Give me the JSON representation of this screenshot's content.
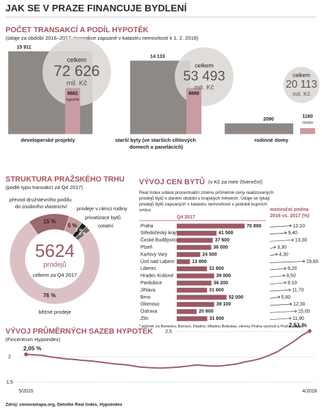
{
  "title": "JAK SE V PRAZE FINANCUJE BYDLENÍ",
  "source": "Zdroj: cenovamapa.org, Deloitte Real Index, Hypoindex",
  "chart_data": [
    {
      "type": "bar",
      "title": "POČET TRANSAKCÍ A PODÍL HYPOTÉK",
      "subtitle": "(údaje za období 2016–2017, transakce zapsané v katastru nemovitostí k 1. 2. 2018)",
      "categories": [
        "developerské projekty",
        "starší byty (ve starších cihlových domech a panelácích)",
        "rodinné domy"
      ],
      "series": [
        {
          "values": [
            15911,
            14133,
            2090
          ],
          "value_labels": [
            "15 911",
            "14 133",
            "2090"
          ],
          "color": "#8e8985"
        },
        {
          "values": [
            8882,
            8888,
            1180
          ],
          "value_labels": [
            "8882",
            "8888",
            "1180"
          ],
          "notes": [
            "hypoték",
            null,
            "zástav"
          ],
          "color": "#c99ca2"
        }
      ],
      "totals": {
        "label": "celkem",
        "unit": "mil. Kč",
        "values": [
          72626,
          53493,
          20113
        ],
        "value_labels": [
          "72 626",
          "53 493",
          "20 113"
        ],
        "color": "#dcd8d5"
      }
    },
    {
      "type": "donut",
      "title": "STRUKTURA PRAŽSKÉHO TRHU",
      "subtitle": "(podle typu transakcí za Q4 2017)",
      "categories": [
        "převod družstevního podílu do osobního vlastnictví",
        "prodeje v rámci rodiny",
        "privatizace bytů",
        "ostatní",
        "běžné prodeje"
      ],
      "values": [
        15,
        5,
        2,
        2,
        76
      ],
      "value_labels": [
        "15 %",
        "5 %",
        "2 %",
        "2 %",
        "76 %"
      ],
      "colors": [
        "#9d6870",
        "#c59aa0",
        "#1e1a1a",
        "#6e6a6a",
        "#dcc1c4"
      ],
      "center": {
        "value": 5624,
        "unit": "prodejů",
        "note": "celkem za Q4 2017"
      }
    },
    {
      "type": "bar",
      "orientation": "horizontal",
      "title": "VÝVOJ CEN BYTŮ",
      "subtitle": "(v Kč za metr čtvereční)",
      "note": "Real Index udává procentuální změnu průměrné ceny realizovaných prodejů bytů v daném období v krajských městech. Údaje se týkají prodejů bytů zapsaných v katastru nemovitostí v podobě kupních smluv.",
      "column_labels": [
        "Q4 2017",
        "meziroční změna 2016 vs. 2017 (%)"
      ],
      "categories": [
        "Praha",
        "Středočeský kraj*",
        "České Budějovice",
        "Plzeň",
        "Karlovy Vary",
        "Ústí nad Labem",
        "Liberec",
        "Hradec Králové",
        "Pardubice",
        "Jihlava",
        "Brno",
        "Olomouc",
        "Ostrava",
        "Zlín"
      ],
      "series": [
        {
          "values": [
            70800,
            41500,
            37600,
            36000,
            24500,
            13800,
            31600,
            39000,
            36200,
            31600,
            52000,
            39100,
            20800,
            31800
          ],
          "value_labels": [
            "70 800",
            "41 500",
            "37 600",
            "36 000",
            "24 500",
            "13 800",
            "31 600",
            "39 000",
            "36 200",
            "31 600",
            "52 000",
            "39 100",
            "20 800",
            "31 800"
          ],
          "color": "#9b5a64"
        },
        {
          "values": [
            12.1,
            9.4,
            13.3,
            3.3,
            4.3,
            19.6,
            9.2,
            8.5,
            9.1,
            11.7,
            5.6,
            12.3,
            15.0,
            11.9
          ],
          "value_labels": [
            "12,10",
            "9,40",
            "13,30",
            "3,30",
            "4,30",
            "19,60",
            "9,20",
            "8,50",
            "9,10",
            "11,70",
            "5,60",
            "12,30",
            "15,00",
            "11,90"
          ],
          "color": "#444444"
        }
      ],
      "footnote": "* průměr za Benešov, Beroun, Kladno, Mladou Boleslav, okresy Praha-východ a Praha-západ"
    },
    {
      "type": "line",
      "title": "VÝVOJ PRŮMĚRNÝCH SAZEB HYPOTÉK",
      "subtitle": "(Fincentrum Hypoindex)",
      "categories": [
        "5/2015",
        null,
        null,
        null,
        null,
        null,
        null,
        null,
        null,
        null,
        null,
        null,
        null,
        null,
        null,
        null,
        null,
        null,
        null,
        null,
        null,
        null,
        null,
        null,
        null,
        null,
        null,
        null,
        null,
        null,
        null,
        null,
        null,
        null,
        null,
        "4/2018"
      ],
      "values": [
        2.05,
        2.04,
        2.03,
        2.0,
        1.98,
        1.96,
        1.95,
        1.93,
        1.92,
        1.9,
        1.88,
        1.86,
        1.85,
        1.83,
        1.8,
        1.79,
        1.78,
        1.78,
        1.79,
        1.8,
        1.82,
        1.84,
        1.83,
        1.82,
        1.82,
        1.84,
        1.86,
        1.9,
        1.93,
        1.97,
        2.03,
        2.1,
        2.2,
        2.3,
        2.42,
        2.51
      ],
      "value_labels": [
        "2,05 %",
        null,
        null,
        null,
        null,
        null,
        null,
        null,
        null,
        null,
        null,
        null,
        null,
        null,
        null,
        null,
        null,
        null,
        null,
        null,
        null,
        null,
        null,
        null,
        null,
        null,
        null,
        null,
        null,
        null,
        null,
        null,
        null,
        null,
        null,
        "2,51 %"
      ],
      "color": "#9b5a64",
      "ylim": [
        1.5,
        2.5
      ],
      "yticks": [
        {
          "value": 1.5,
          "label": "1,5"
        },
        2,
        {
          "value": 2.5,
          "label": "2,5"
        }
      ],
      "grid": true
    }
  ]
}
